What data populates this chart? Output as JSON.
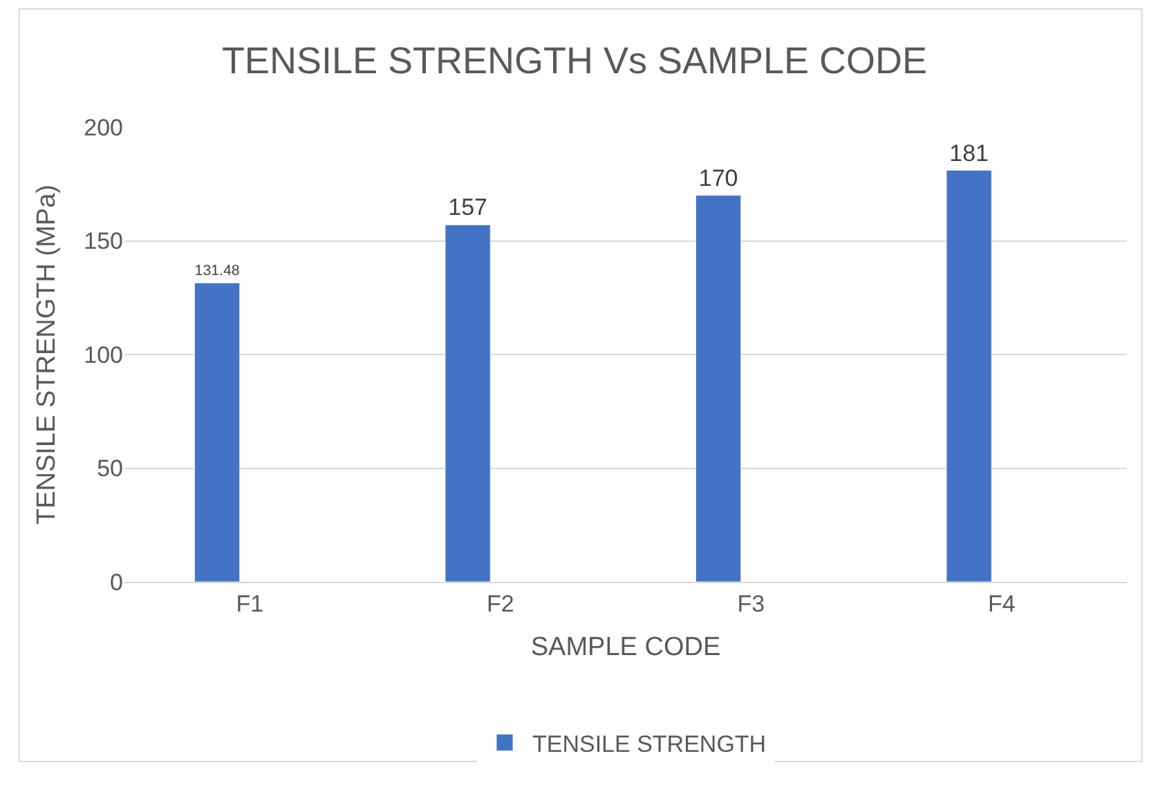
{
  "chart_data": {
    "type": "bar",
    "title": "TENSILE STRENGTH Vs SAMPLE CODE",
    "xlabel": "SAMPLE CODE",
    "ylabel": "TENSILE STRENGTH (MPa)",
    "categories": [
      "F1",
      "F2",
      "F3",
      "F4"
    ],
    "series": [
      {
        "name": "TENSILE STRENGTH",
        "color": "#4472c4",
        "values": [
          131.48,
          157,
          170,
          181
        ]
      }
    ],
    "ylim": [
      0,
      200
    ],
    "yticks": [
      0,
      50,
      100,
      150,
      200
    ],
    "grid": "y",
    "legend": "bottom",
    "data_labels": true
  }
}
